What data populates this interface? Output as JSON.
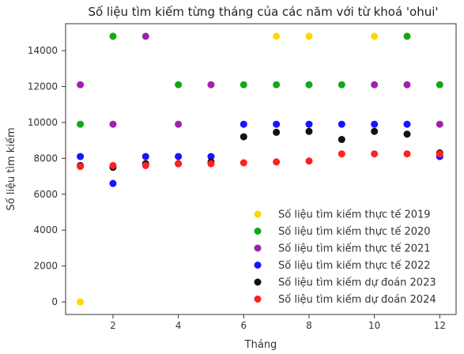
{
  "chart_data": {
    "type": "scatter",
    "title": "Số liệu tìm kiếm từng tháng của các năm với từ khoá 'ohui'",
    "xlabel": "Tháng",
    "ylabel": "Số liệu tìm kiếm",
    "xlim": [
      0.55,
      12.5
    ],
    "ylim": [
      -700,
      15500
    ],
    "xticks": [
      2,
      4,
      6,
      8,
      10,
      12
    ],
    "yticks": [
      0,
      2000,
      4000,
      6000,
      8000,
      10000,
      12000,
      14000
    ],
    "grid": false,
    "legend_position": "lower-right",
    "series": [
      {
        "name": "Số liệu tìm kiếm thực tế 2019",
        "color": "#ffd700",
        "points": [
          [
            1,
            0
          ],
          [
            7,
            14800
          ],
          [
            8,
            14800
          ],
          [
            10,
            14800
          ]
        ]
      },
      {
        "name": "Số liệu tìm kiếm thực tế 2020",
        "color": "#11aa11",
        "points": [
          [
            1,
            9900
          ],
          [
            2,
            14800
          ],
          [
            4,
            12100
          ],
          [
            6,
            12100
          ],
          [
            7,
            12100
          ],
          [
            8,
            12100
          ],
          [
            9,
            12100
          ],
          [
            11,
            14800
          ],
          [
            12,
            12100
          ]
        ]
      },
      {
        "name": "Số liệu tìm kiếm thực tế 2021",
        "color": "#a020b0",
        "points": [
          [
            1,
            12100
          ],
          [
            2,
            9900
          ],
          [
            3,
            14800
          ],
          [
            4,
            9900
          ],
          [
            5,
            12100
          ],
          [
            10,
            12100
          ],
          [
            11,
            12100
          ],
          [
            12,
            9900
          ]
        ]
      },
      {
        "name": "Số liệu tìm kiếm thực tế 2022",
        "color": "#1515ff",
        "points": [
          [
            1,
            8100
          ],
          [
            2,
            6600
          ],
          [
            3,
            8100
          ],
          [
            4,
            8100
          ],
          [
            5,
            8100
          ],
          [
            6,
            9900
          ],
          [
            7,
            9900
          ],
          [
            8,
            9900
          ],
          [
            9,
            9900
          ],
          [
            10,
            9900
          ],
          [
            11,
            9900
          ],
          [
            12,
            8100
          ]
        ]
      },
      {
        "name": "Số liệu tìm kiếm dự đoán 2023",
        "color": "#111111",
        "points": [
          [
            1,
            7600
          ],
          [
            2,
            7500
          ],
          [
            3,
            7700
          ],
          [
            4,
            7700
          ],
          [
            5,
            7800
          ],
          [
            6,
            9200
          ],
          [
            7,
            9450
          ],
          [
            8,
            9500
          ],
          [
            9,
            9050
          ],
          [
            10,
            9500
          ],
          [
            11,
            9350
          ],
          [
            12,
            8300
          ]
        ]
      },
      {
        "name": "Số liệu tìm kiếm dự đoán 2024",
        "color": "#ff2020",
        "points": [
          [
            1,
            7550
          ],
          [
            2,
            7600
          ],
          [
            3,
            7600
          ],
          [
            4,
            7700
          ],
          [
            5,
            7700
          ],
          [
            6,
            7750
          ],
          [
            7,
            7800
          ],
          [
            8,
            7850
          ],
          [
            9,
            8250
          ],
          [
            10,
            8250
          ],
          [
            11,
            8250
          ],
          [
            12,
            8250
          ]
        ]
      }
    ]
  }
}
